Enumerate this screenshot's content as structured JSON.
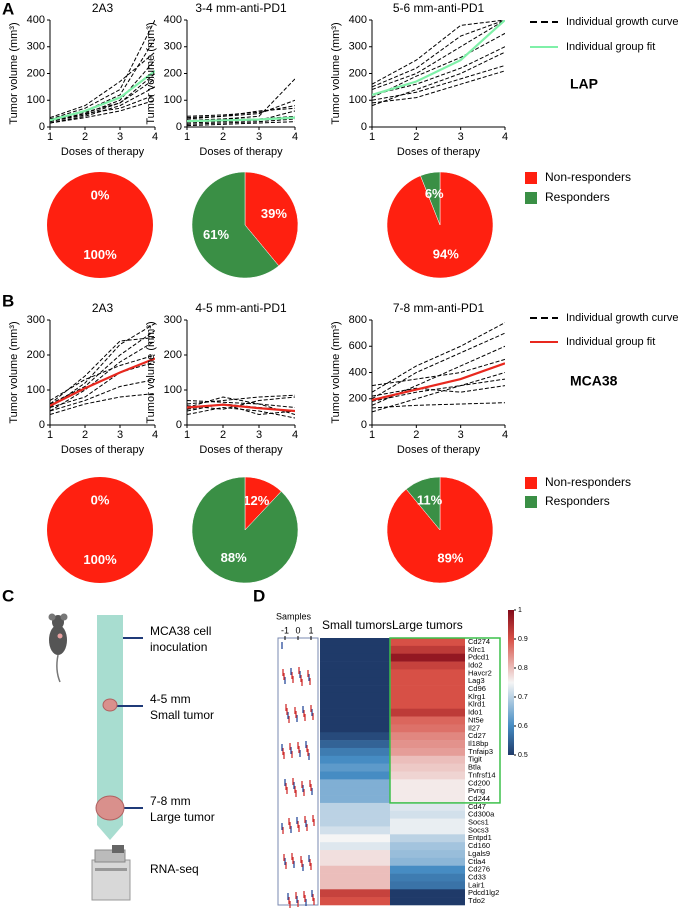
{
  "panel_labels": [
    "A",
    "B",
    "C",
    "D"
  ],
  "legends": [
    {
      "entries": [
        {
          "name": "Individual growth curve",
          "color": "#000000",
          "style": "dash"
        },
        {
          "name": "Individual group fit",
          "color": "#7ff0a8",
          "style": "solid"
        }
      ],
      "model": "LAP",
      "model_color": "#6fe89a"
    },
    {
      "entries": [
        {
          "name": "Individual growth curve",
          "color": "#000000",
          "style": "dash"
        },
        {
          "name": "Individual group fit",
          "color": "#e8281e",
          "style": "solid"
        }
      ],
      "model": "MCA38",
      "model_color": "#e8281e"
    },
    {
      "entries": [
        {
          "name": "Non-responders",
          "color": "#ff2010",
          "style": "square"
        },
        {
          "name": "Responders",
          "color": "#3a8f45",
          "style": "square"
        }
      ]
    },
    {
      "entries": [
        {
          "name": "Non-responders",
          "color": "#ff2010",
          "style": "square"
        },
        {
          "name": "Responders",
          "color": "#3a8f45",
          "style": "square"
        }
      ]
    }
  ],
  "chart_data": [
    {
      "type": "line",
      "title": "2A3",
      "xlabel": "Doses of therapy",
      "ylabel": "Tumor volume (mm³)",
      "x": [
        1,
        2,
        3,
        4
      ],
      "xlim": [
        1,
        4
      ],
      "xticks": [
        1,
        2,
        3,
        4
      ],
      "ylim": [
        0,
        400
      ],
      "yticks": [
        0,
        100,
        200,
        300,
        400
      ],
      "curves": [
        [
          30,
          70,
          140,
          400
        ],
        [
          25,
          60,
          120,
          330
        ],
        [
          20,
          50,
          100,
          250
        ],
        [
          30,
          55,
          90,
          180
        ],
        [
          15,
          40,
          80,
          150
        ],
        [
          25,
          50,
          70,
          120
        ],
        [
          20,
          45,
          90,
          200
        ],
        [
          35,
          80,
          170,
          280
        ],
        [
          15,
          35,
          60,
          100
        ]
      ],
      "fit": {
        "color": "#7ff0a8",
        "values": [
          25,
          60,
          110,
          210
        ]
      }
    },
    {
      "type": "line",
      "title": "3-4 mm-anti-PD1",
      "xlabel": "Doses of therapy",
      "ylabel": "Tumor volume (mm³)",
      "x": [
        1,
        2,
        3,
        4
      ],
      "xlim": [
        1,
        4
      ],
      "xticks": [
        1,
        2,
        3,
        4
      ],
      "ylim": [
        0,
        400
      ],
      "yticks": [
        0,
        100,
        200,
        300,
        400
      ],
      "curves": [
        [
          20,
          30,
          40,
          180
        ],
        [
          30,
          40,
          50,
          100
        ],
        [
          15,
          20,
          25,
          60
        ],
        [
          40,
          45,
          55,
          80
        ],
        [
          10,
          15,
          20,
          30
        ],
        [
          25,
          30,
          30,
          40
        ],
        [
          5,
          10,
          15,
          20
        ],
        [
          35,
          40,
          60,
          70
        ]
      ],
      "fit": {
        "color": "#7ff0a8",
        "values": [
          22,
          25,
          28,
          35
        ]
      }
    },
    {
      "type": "line",
      "title": "5-6 mm-anti-PD1",
      "xlabel": "Doses of therapy",
      "ylabel": "Tumor volume (mm³)",
      "x": [
        1,
        2,
        3,
        4
      ],
      "xlim": [
        1,
        4
      ],
      "xticks": [
        1,
        2,
        3,
        4
      ],
      "ylim": [
        0,
        400
      ],
      "yticks": [
        0,
        100,
        200,
        300,
        400
      ],
      "curves": [
        [
          140,
          200,
          300,
          400
        ],
        [
          120,
          160,
          220,
          300
        ],
        [
          80,
          140,
          200,
          280
        ],
        [
          160,
          250,
          380,
          400
        ],
        [
          100,
          130,
          180,
          230
        ],
        [
          150,
          220,
          340,
          400
        ],
        [
          90,
          110,
          160,
          210
        ],
        [
          110,
          190,
          260,
          350
        ]
      ],
      "fit": {
        "color": "#7ff0a8",
        "values": [
          120,
          170,
          250,
          400
        ]
      }
    },
    {
      "type": "line",
      "title": "2A3",
      "xlabel": "Doses of therapy",
      "ylabel": "Tumor volume (mm³)",
      "x": [
        1,
        2,
        3,
        4
      ],
      "xlim": [
        1,
        4
      ],
      "xticks": [
        1,
        2,
        3,
        4
      ],
      "ylim": [
        0,
        300
      ],
      "yticks": [
        0,
        100,
        200,
        300
      ],
      "curves": [
        [
          50,
          120,
          230,
          290
        ],
        [
          60,
          110,
          200,
          270
        ],
        [
          40,
          100,
          180,
          240
        ],
        [
          70,
          130,
          170,
          200
        ],
        [
          50,
          80,
          150,
          180
        ],
        [
          40,
          70,
          110,
          130
        ],
        [
          30,
          60,
          80,
          90
        ],
        [
          60,
          140,
          240,
          250
        ]
      ],
      "fit": {
        "color": "#e8281e",
        "values": [
          55,
          105,
          150,
          190
        ]
      }
    },
    {
      "type": "line",
      "title": "4-5 mm-anti-PD1",
      "xlabel": "Doses of therapy",
      "ylabel": "Tumor volume (mm³)",
      "x": [
        1,
        2,
        3,
        4
      ],
      "xlim": [
        1,
        4
      ],
      "xticks": [
        1,
        2,
        3,
        4
      ],
      "ylim": [
        0,
        300
      ],
      "yticks": [
        0,
        100,
        200,
        300
      ],
      "curves": [
        [
          60,
          70,
          80,
          85
        ],
        [
          40,
          60,
          50,
          40
        ],
        [
          50,
          80,
          60,
          30
        ],
        [
          70,
          65,
          60,
          50
        ],
        [
          30,
          50,
          40,
          20
        ],
        [
          55,
          45,
          70,
          80
        ],
        [
          45,
          60,
          30,
          40
        ]
      ],
      "fit": {
        "color": "#e8281e",
        "values": [
          50,
          58,
          48,
          40
        ]
      }
    },
    {
      "type": "line",
      "title": "7-8 mm-anti-PD1",
      "xlabel": "Doses of therapy",
      "ylabel": "Tumor volume (mm³)",
      "x": [
        1,
        2,
        3,
        4
      ],
      "xlim": [
        1,
        4
      ],
      "xticks": [
        1,
        2,
        3,
        4
      ],
      "ylim": [
        0,
        800
      ],
      "yticks": [
        0,
        200,
        400,
        600,
        800
      ],
      "curves": [
        [
          250,
          450,
          600,
          780
        ],
        [
          200,
          400,
          550,
          700
        ],
        [
          150,
          300,
          450,
          600
        ],
        [
          300,
          350,
          400,
          500
        ],
        [
          180,
          250,
          300,
          350
        ],
        [
          100,
          200,
          300,
          400
        ],
        [
          220,
          280,
          250,
          300
        ],
        [
          130,
          150,
          160,
          170
        ]
      ],
      "fit": {
        "color": "#e8281e",
        "values": [
          190,
          270,
          350,
          470
        ]
      }
    },
    {
      "type": "pie",
      "values": [
        100,
        0
      ],
      "value_labels": [
        "100%",
        "0%"
      ],
      "colors": [
        "#ff2010",
        "#3a8f45"
      ]
    },
    {
      "type": "pie",
      "values": [
        39,
        61
      ],
      "value_labels": [
        "39%",
        "61%"
      ],
      "colors": [
        "#ff2010",
        "#3a8f45"
      ]
    },
    {
      "type": "pie",
      "values": [
        94,
        6
      ],
      "value_labels": [
        "94%",
        "6%"
      ],
      "colors": [
        "#ff2010",
        "#3a8f45"
      ]
    },
    {
      "type": "pie",
      "values": [
        100,
        0
      ],
      "value_labels": [
        "100%",
        "0%"
      ],
      "colors": [
        "#ff2010",
        "#3a8f45"
      ]
    },
    {
      "type": "pie",
      "values": [
        12,
        88
      ],
      "value_labels": [
        "12%",
        "88%"
      ],
      "colors": [
        "#ff2010",
        "#3a8f45"
      ]
    },
    {
      "type": "pie",
      "values": [
        89,
        11
      ],
      "value_labels": [
        "89%",
        "11%"
      ],
      "colors": [
        "#ff2010",
        "#3a8f45"
      ]
    },
    {
      "type": "heatmap",
      "samples_label": "Samples",
      "sample_scale": [
        -1,
        0,
        1
      ],
      "columns": [
        "Small tumors",
        "Large tumors"
      ],
      "column_colors": [
        "#1f3a78",
        "#e8281e"
      ],
      "rows": [
        "Cd274",
        "Klrc1",
        "Pdcd1",
        "Ido2",
        "Havcr2",
        "Lag3",
        "Cd96",
        "Klrg1",
        "Klrd1",
        "Ido1",
        "Nt5e",
        "Il27",
        "Cd27",
        "Il18bp",
        "Tnfaip3",
        "Tigit",
        "Btla",
        "Tnfrsf14",
        "Cd200",
        "Pvrig",
        "Cd244",
        "Cd47",
        "Cd300a",
        "Socs1",
        "Socs3",
        "Entpd1",
        "Cd160",
        "Lgals9",
        "Ctla4",
        "Cd276",
        "Cd33",
        "Lair1",
        "Pdcd1lg2",
        "Tdo2"
      ],
      "values": [
        [
          0.5,
          0.5,
          0.5,
          0.5,
          0.5,
          0.5,
          0.5,
          0.5,
          0.5,
          0.5,
          0.5,
          0.5,
          0.52,
          0.55,
          0.58,
          0.6,
          0.62,
          0.6,
          0.65,
          0.65,
          0.65,
          0.7,
          0.7,
          0.7,
          0.72,
          0.75,
          0.73,
          0.77,
          0.77,
          0.8,
          0.8,
          0.8,
          0.92,
          0.9
        ],
        [
          0.9,
          0.93,
          0.98,
          0.92,
          0.9,
          0.9,
          0.9,
          0.9,
          0.9,
          0.93,
          0.88,
          0.87,
          0.85,
          0.84,
          0.83,
          0.8,
          0.79,
          0.78,
          0.76,
          0.76,
          0.76,
          0.73,
          0.72,
          0.74,
          0.74,
          0.7,
          0.68,
          0.67,
          0.66,
          0.6,
          0.58,
          0.57,
          0.5,
          0.5
        ]
      ],
      "clim": [
        0.5,
        1
      ],
      "cticks": [
        0.5,
        0.6,
        0.7,
        0.8,
        0.9,
        1
      ]
    }
  ],
  "diagram": {
    "steps": [
      {
        "lines": [
          "MCA38 cell",
          "inoculation"
        ]
      },
      {
        "lines": [
          "4-5 mm",
          "Small tumor"
        ]
      },
      {
        "lines": [
          "7-8 mm",
          "Large tumor"
        ]
      },
      {
        "lines": [
          "RNA-seq"
        ]
      }
    ]
  }
}
